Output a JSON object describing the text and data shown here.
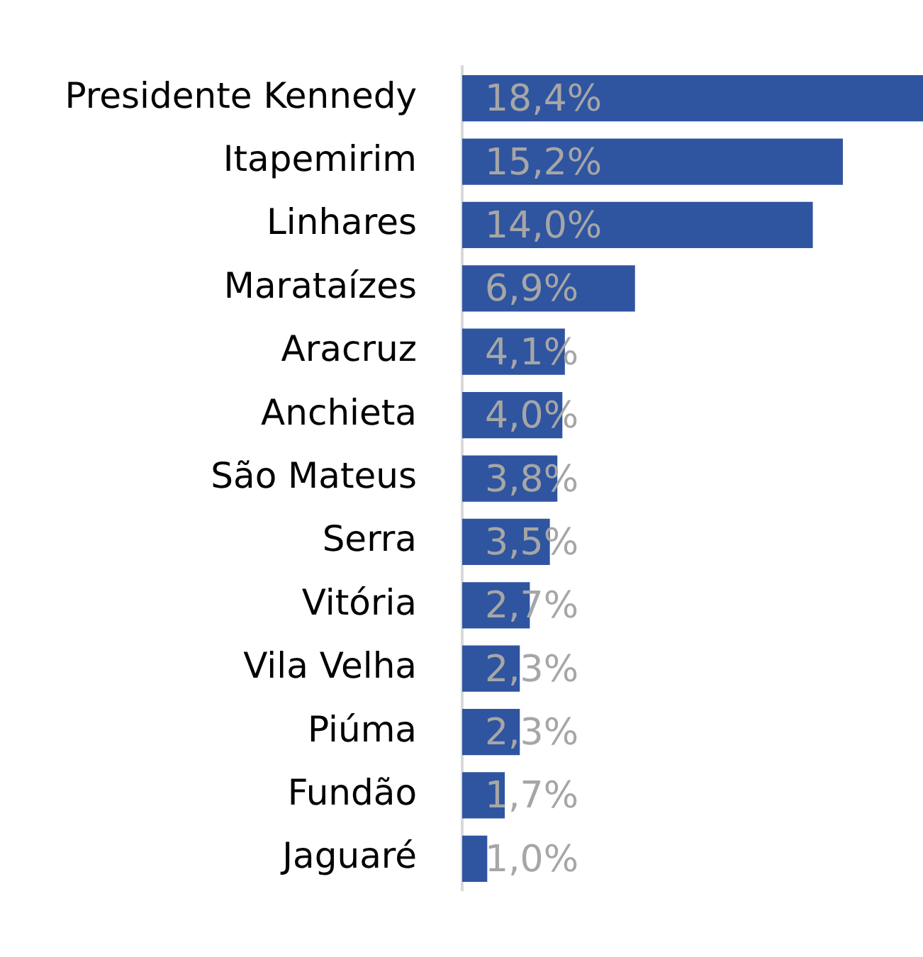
{
  "chart_data": {
    "type": "bar",
    "orientation": "horizontal",
    "categories": [
      "Presidente Kennedy",
      "Itapemirim",
      "Linhares",
      "Marataízes",
      "Aracruz",
      "Anchieta",
      "São Mateus",
      "Serra",
      "Vitória",
      "Vila Velha",
      "Piúma",
      "Fundão",
      "Jaguaré"
    ],
    "values": [
      18.4,
      15.2,
      14.0,
      6.9,
      4.1,
      4.0,
      3.8,
      3.5,
      2.7,
      2.3,
      2.3,
      1.7,
      1.0
    ],
    "value_labels": [
      "18,4%",
      "15,2%",
      "14,0%",
      "6,9%",
      "4,1%",
      "4,0%",
      "3,8%",
      "3,5%",
      "2,7%",
      "2,3%",
      "2,3%",
      "1,7%",
      "1,0%"
    ],
    "color": "#2f55a0",
    "xlim": [
      0,
      18.4
    ],
    "tick_labels": "y",
    "grid": false,
    "legend": false
  }
}
